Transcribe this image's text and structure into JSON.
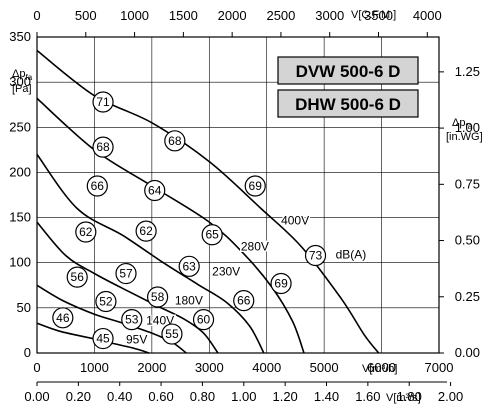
{
  "chart_data": {
    "type": "line",
    "title": "",
    "models": [
      "DVW 500-6 D",
      "DHW 500-6 D"
    ],
    "axes": {
      "x_m3h": {
        "label": "V[m³/h]",
        "range": [
          0,
          7000
        ],
        "ticks": [
          0,
          1000,
          2000,
          3000,
          4000,
          5000,
          6000,
          7000
        ]
      },
      "x_cfm": {
        "label": "V[C.F.M.]",
        "range": [
          0,
          4120
        ],
        "ticks": [
          0,
          500,
          1000,
          1500,
          2000,
          2500,
          3000,
          3500,
          4000
        ]
      },
      "x_m3s": {
        "label": "V[m³/s]",
        "range": [
          0,
          1.944
        ],
        "ticks": [
          "0.00",
          "0.20",
          "0.40",
          "0.60",
          "0.80",
          "1.00",
          "1.20",
          "1.40",
          "1.60",
          "1.80",
          "2.00"
        ]
      },
      "y_pa": {
        "label_main": "Δp",
        "label_sub": "fa",
        "label_unit": "[Pa]",
        "range": [
          0,
          350
        ],
        "ticks": [
          0,
          50,
          100,
          150,
          200,
          250,
          300,
          350
        ]
      },
      "y_inwg": {
        "label_main": "Δp",
        "label_sub": "fa",
        "label_unit": "[in.WG]",
        "range": [
          0,
          1.405
        ],
        "ticks": [
          "0.00",
          "0.25",
          "0.50",
          "0.75",
          "1.00",
          "1.25"
        ]
      }
    },
    "grid": true,
    "series": [
      {
        "name": "400V",
        "points": [
          [
            0,
            335
          ],
          [
            1000,
            285
          ],
          [
            2000,
            255
          ],
          [
            3000,
            212
          ],
          [
            3900,
            160
          ],
          [
            4600,
            118
          ],
          [
            5300,
            60
          ],
          [
            5700,
            20
          ],
          [
            5950,
            0
          ]
        ]
      },
      {
        "name": "280V",
        "points": [
          [
            0,
            282
          ],
          [
            1000,
            225
          ],
          [
            2000,
            185
          ],
          [
            3000,
            145
          ],
          [
            3600,
            110
          ],
          [
            4100,
            72
          ],
          [
            4450,
            35
          ],
          [
            4650,
            0
          ]
        ]
      },
      {
        "name": "230V",
        "points": [
          [
            0,
            220
          ],
          [
            700,
            160
          ],
          [
            1500,
            130
          ],
          [
            2200,
            100
          ],
          [
            2800,
            76
          ],
          [
            3300,
            56
          ],
          [
            3700,
            30
          ],
          [
            3950,
            0
          ]
        ]
      },
      {
        "name": "180V",
        "points": [
          [
            0,
            145
          ],
          [
            500,
            108
          ],
          [
            1000,
            88
          ],
          [
            1600,
            68
          ],
          [
            2100,
            52
          ],
          [
            2550,
            38
          ],
          [
            2900,
            22
          ],
          [
            3150,
            0
          ]
        ]
      },
      {
        "name": "140V",
        "points": [
          [
            0,
            75
          ],
          [
            450,
            58
          ],
          [
            1000,
            43
          ],
          [
            1500,
            33
          ],
          [
            2000,
            22
          ],
          [
            2350,
            12
          ],
          [
            2600,
            0
          ]
        ]
      },
      {
        "name": "95V",
        "points": [
          [
            0,
            33
          ],
          [
            400,
            24
          ],
          [
            900,
            17
          ],
          [
            1300,
            11
          ],
          [
            1700,
            5
          ],
          [
            1950,
            0
          ]
        ]
      }
    ],
    "voltage_labels": [
      {
        "text": "400V",
        "x": 4250,
        "y": 147
      },
      {
        "text": "280V",
        "x": 3550,
        "y": 118
      },
      {
        "text": "230V",
        "x": 3050,
        "y": 90
      },
      {
        "text": "180V",
        "x": 2400,
        "y": 58
      },
      {
        "text": "140V",
        "x": 1900,
        "y": 36
      },
      {
        "text": "95V",
        "x": 1550,
        "y": 15
      }
    ],
    "noise_unit_label": {
      "text": "dB(A)",
      "x": 5200,
      "y": 109
    },
    "noise_levels_dBA": [
      {
        "value": 71,
        "x": 1150,
        "y": 278
      },
      {
        "value": 68,
        "x": 2400,
        "y": 235
      },
      {
        "value": 69,
        "x": 3800,
        "y": 185
      },
      {
        "value": 73,
        "x": 4850,
        "y": 108
      },
      {
        "value": 68,
        "x": 1150,
        "y": 228
      },
      {
        "value": 64,
        "x": 2050,
        "y": 180
      },
      {
        "value": 65,
        "x": 3050,
        "y": 131
      },
      {
        "value": 69,
        "x": 4250,
        "y": 77
      },
      {
        "value": 66,
        "x": 1050,
        "y": 185
      },
      {
        "value": 62,
        "x": 1900,
        "y": 135
      },
      {
        "value": 63,
        "x": 2650,
        "y": 96
      },
      {
        "value": 66,
        "x": 3600,
        "y": 58
      },
      {
        "value": 62,
        "x": 850,
        "y": 134
      },
      {
        "value": 57,
        "x": 1550,
        "y": 88
      },
      {
        "value": 58,
        "x": 2100,
        "y": 62
      },
      {
        "value": 60,
        "x": 2900,
        "y": 37
      },
      {
        "value": 56,
        "x": 700,
        "y": 84
      },
      {
        "value": 52,
        "x": 1200,
        "y": 57
      },
      {
        "value": 53,
        "x": 1650,
        "y": 37
      },
      {
        "value": 55,
        "x": 2350,
        "y": 21
      },
      {
        "value": 46,
        "x": 450,
        "y": 39
      },
      {
        "value": 45,
        "x": 1150,
        "y": 16
      }
    ],
    "colors": {
      "curve": "#000000",
      "grid": "#000000",
      "badge_fill": "#ffffff",
      "model_box": "#d4d4d4"
    }
  }
}
